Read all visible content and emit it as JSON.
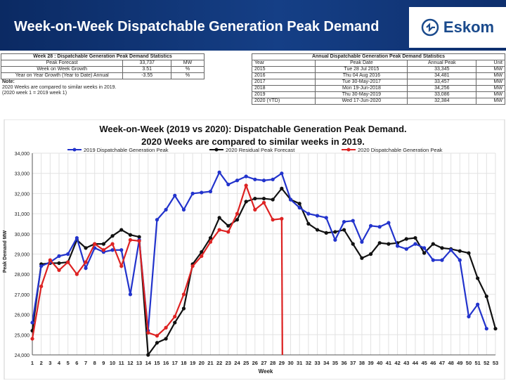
{
  "header": {
    "title": "Week-on-Week Dispatchable Generation Peak Demand",
    "logo_text": "Eskom"
  },
  "weekly_stats": {
    "title": "Week 28 : Dispatchable Generation Peak Demand Statistics",
    "rows": [
      [
        "Peak Forecast",
        "33,737",
        "MW"
      ],
      [
        "Week on Week Growth",
        "3.51",
        "%"
      ],
      [
        "Year on Year Growth (Year to Date) Annual",
        "-3.55",
        "%"
      ]
    ]
  },
  "note": {
    "label": "Note:",
    "lines": [
      "2020 Weeks are compared to similar weeks in 2019.",
      "(2020 week 1 = 2019 week 1)"
    ]
  },
  "annual_stats": {
    "title": "Annual Dispatchable Generation Peak Demand Statistics",
    "headers": [
      "Year",
      "Peak Date",
      "Annual Peak",
      "Unit"
    ],
    "rows": [
      [
        "2015",
        "Tue 28 Jul 2015",
        "33,345",
        "MW"
      ],
      [
        "2016",
        "Thu 04 Aug 2016",
        "34,481",
        "MW"
      ],
      [
        "2017",
        "Tue 30-May-2017",
        "33,457",
        "MW"
      ],
      [
        "2018",
        "Mon 19-Jun-2018",
        "34,256",
        "MW"
      ],
      [
        "2019",
        "Thu 30-May-2019",
        "33,086",
        "MW"
      ],
      [
        "2020 (YTD)",
        "Wed 17-Jun-2020",
        "32,384",
        "MW"
      ]
    ]
  },
  "chart_data": {
    "type": "line",
    "title": "Week-on-Week (2019 vs 2020): Dispatchable Generation Peak Demand.",
    "subtitle": "2020 Weeks are compared to similar weeks in 2019.",
    "xlabel": "Week",
    "ylabel": "Peak Demand MW",
    "ylim": [
      24000,
      34000
    ],
    "yticks": [
      "24,000",
      "25,000",
      "26,000",
      "27,000",
      "28,000",
      "29,000",
      "30,000",
      "31,000",
      "32,000",
      "33,000",
      "34,000"
    ],
    "x": [
      1,
      2,
      3,
      4,
      5,
      6,
      7,
      8,
      9,
      10,
      11,
      12,
      13,
      14,
      15,
      16,
      17,
      18,
      19,
      20,
      21,
      22,
      23,
      24,
      25,
      26,
      27,
      28,
      29,
      30,
      31,
      32,
      33,
      34,
      35,
      36,
      37,
      38,
      39,
      40,
      41,
      42,
      43,
      44,
      45,
      46,
      47,
      48,
      49,
      50,
      51,
      52,
      53
    ],
    "series": [
      {
        "name": "2019 Dispatchable Generation Peak",
        "color": "#2233cc",
        "values": [
          25600,
          28400,
          28600,
          28900,
          29000,
          29800,
          28300,
          29300,
          29100,
          29200,
          29200,
          27000,
          29700,
          25200,
          30700,
          31200,
          31900,
          31200,
          32000,
          32050,
          32100,
          33050,
          32450,
          32650,
          32850,
          32700,
          32650,
          32700,
          33000,
          31700,
          31300,
          31000,
          30900,
          30800,
          29700,
          30600,
          30650,
          29600,
          30400,
          30350,
          30550,
          29400,
          29250,
          29500,
          29300,
          28700,
          28700,
          29200,
          28700,
          25900,
          26500,
          25300,
          null
        ]
      },
      {
        "name": "2020 Residual Peak Forecast",
        "color": "#111111",
        "values": [
          25200,
          28500,
          28550,
          28550,
          28600,
          29700,
          29300,
          29500,
          29500,
          29900,
          30200,
          29950,
          29850,
          24000,
          24600,
          24800,
          25600,
          26300,
          28500,
          29100,
          29800,
          30800,
          30400,
          30700,
          31600,
          31750,
          31750,
          31700,
          32250,
          31700,
          31500,
          30500,
          30200,
          30050,
          30100,
          30200,
          29500,
          28800,
          29000,
          29550,
          29500,
          29550,
          29750,
          29800,
          29050,
          29500,
          29300,
          29250,
          29150,
          29050,
          27800,
          26900,
          25300
        ]
      },
      {
        "name": "2020 Dispatchable Generation Peak",
        "color": "#dd2222",
        "values": [
          24800,
          27400,
          28700,
          28200,
          28600,
          28000,
          28600,
          29500,
          29200,
          29500,
          28400,
          29700,
          29650,
          25100,
          24950,
          25350,
          25900,
          27000,
          28400,
          28900,
          29600,
          30200,
          30100,
          31000,
          32400,
          31200,
          31550,
          30700,
          30750,
          null,
          null,
          null,
          null,
          null,
          null,
          null,
          null,
          null,
          null,
          null,
          null,
          null,
          null,
          null,
          null,
          null,
          null,
          null,
          null,
          null,
          null,
          null,
          null
        ]
      }
    ],
    "drop_to": [
      {
        "series": 2,
        "week": 29,
        "value": 24000
      }
    ]
  },
  "colors": {
    "header_bg": "#0b2a63",
    "grid": "#e6e6e6",
    "axis": "#555555"
  }
}
